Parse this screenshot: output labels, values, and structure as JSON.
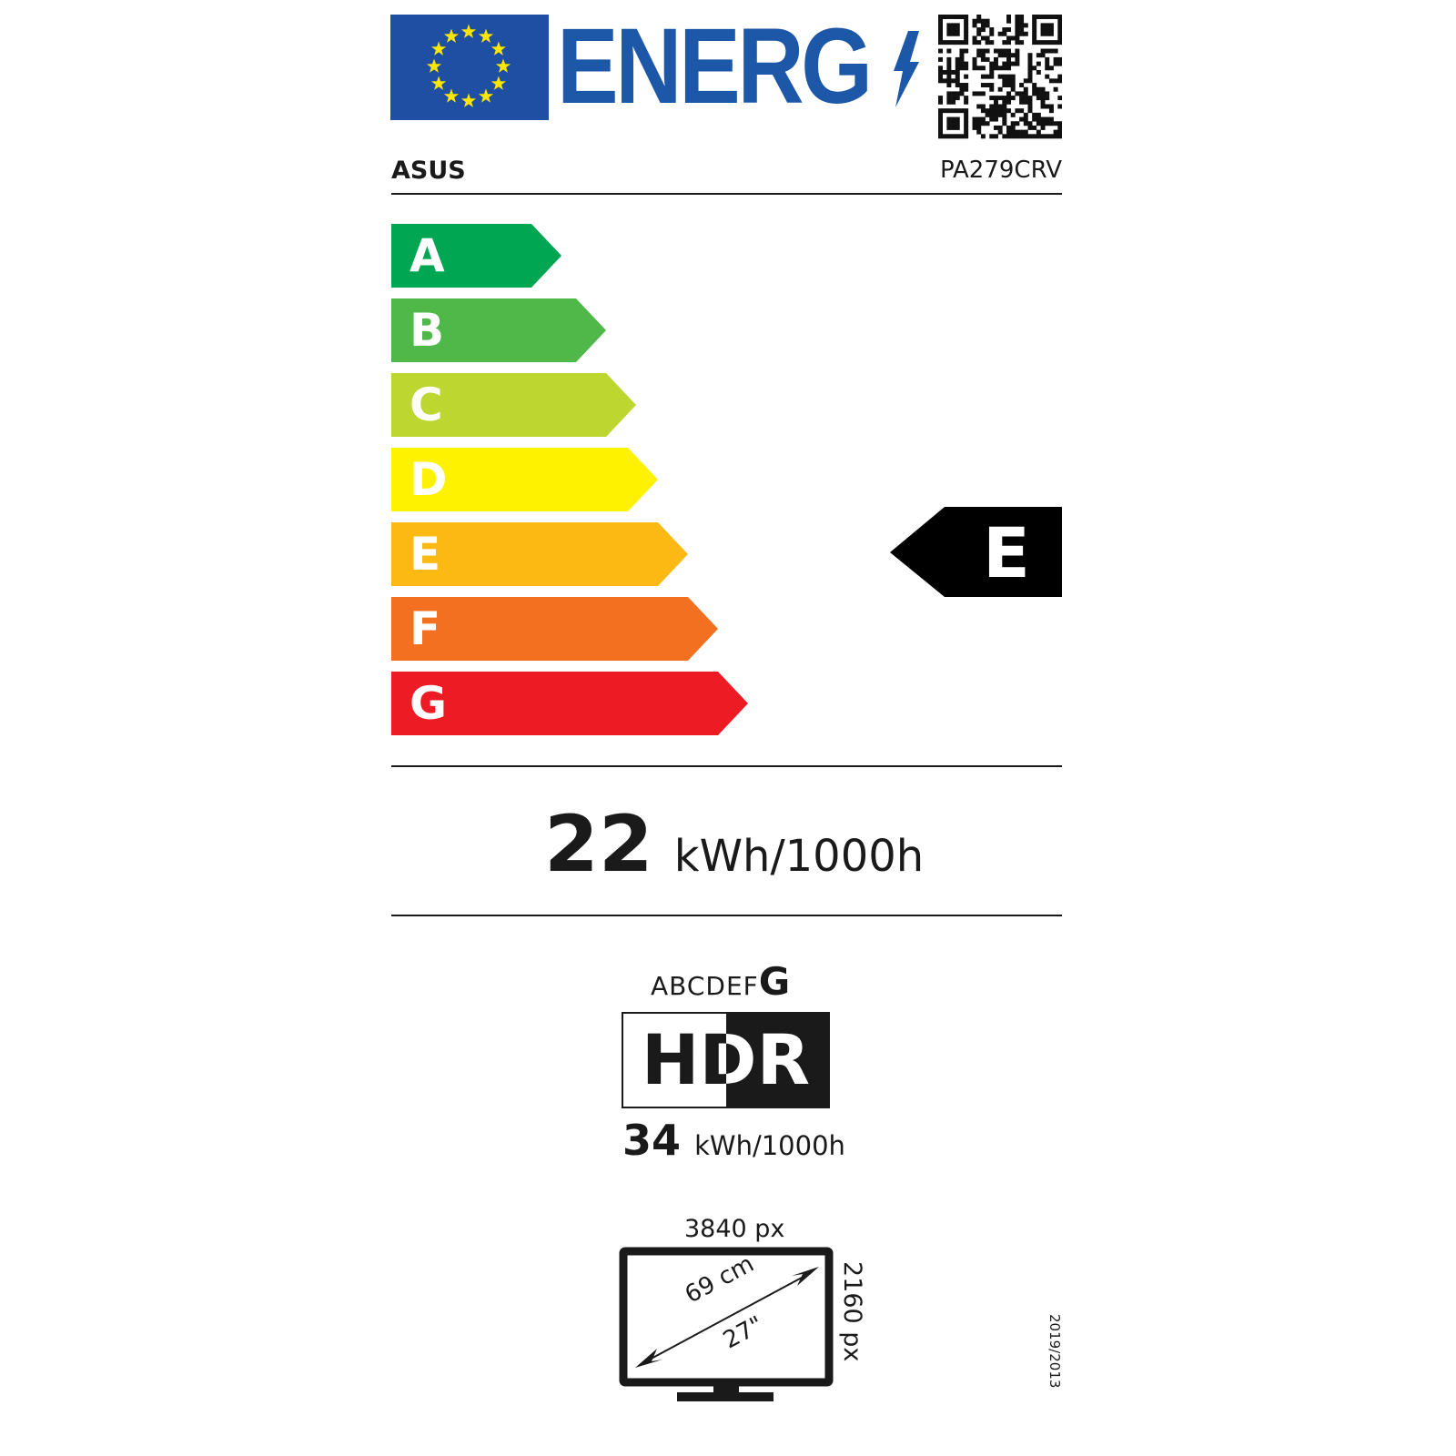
{
  "header": {
    "logo_text": "ENERG",
    "eu_flag_color": "#1f4fa3",
    "star_color": "#ffe600",
    "brand_color": "#1d58a8",
    "supplier": "ASUS",
    "model": "PA279CRV"
  },
  "scale": {
    "classes": [
      {
        "letter": "A",
        "color": "#00a651"
      },
      {
        "letter": "B",
        "color": "#50b848"
      },
      {
        "letter": "C",
        "color": "#bed630"
      },
      {
        "letter": "D",
        "color": "#fff200"
      },
      {
        "letter": "E",
        "color": "#fdb913"
      },
      {
        "letter": "F",
        "color": "#f37021"
      },
      {
        "letter": "G",
        "color": "#ed1c24"
      }
    ],
    "rating": "E"
  },
  "sdr_energy": {
    "value": "22",
    "unit": "kWh/1000h"
  },
  "hdr": {
    "scale_letters": "ABCDEF",
    "scale_rating": "G",
    "label": "HDR",
    "value": "34",
    "unit": "kWh/1000h"
  },
  "screen": {
    "width_px": "3840 px",
    "height_px": "2160 px",
    "diagonal_cm": "69 cm",
    "diagonal_in": "27\""
  },
  "regulation": "2019/2013"
}
